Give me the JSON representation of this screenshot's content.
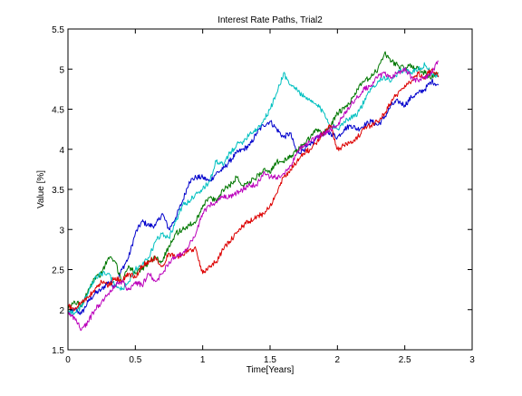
{
  "chart_data": {
    "type": "line",
    "title": "Interest Rate Paths, Trial2",
    "xlabel": "Time[Years]",
    "ylabel": "Value [%]",
    "xlim": [
      0,
      3
    ],
    "ylim": [
      1.5,
      5.5
    ],
    "xticks": [
      0,
      0.5,
      1,
      1.5,
      2,
      2.5,
      3
    ],
    "xtick_labels": [
      "0",
      "0.5",
      "1",
      "1.5",
      "2",
      "2.5",
      "3"
    ],
    "yticks": [
      1.5,
      2,
      2.5,
      3,
      3.5,
      4,
      4.5,
      5,
      5.5
    ],
    "ytick_labels": [
      "1.5",
      "2",
      "2.5",
      "3",
      "3.5",
      "4",
      "4.5",
      "5",
      "5.5"
    ],
    "grid": false,
    "legend": "none",
    "series": [
      {
        "color": "#0000cc",
        "x": [
          0,
          0.05,
          0.1,
          0.15,
          0.2,
          0.25,
          0.3,
          0.35,
          0.4,
          0.45,
          0.5,
          0.55,
          0.6,
          0.65,
          0.7,
          0.75,
          0.8,
          0.85,
          0.9,
          0.95,
          1,
          1.05,
          1.1,
          1.15,
          1.2,
          1.25,
          1.3,
          1.35,
          1.4,
          1.45,
          1.5,
          1.55,
          1.6,
          1.65,
          1.7,
          1.75,
          1.8,
          1.85,
          1.9,
          1.95,
          2,
          2.05,
          2.1,
          2.15,
          2.2,
          2.25,
          2.3,
          2.35,
          2.4,
          2.45,
          2.5,
          2.55,
          2.6,
          2.65,
          2.7,
          2.75
        ],
        "y": [
          1.95,
          2.0,
          1.95,
          2.1,
          2.2,
          2.25,
          2.35,
          2.3,
          2.5,
          2.65,
          2.95,
          3.1,
          3.05,
          3.05,
          3.2,
          3.0,
          3.15,
          3.35,
          3.6,
          3.65,
          3.65,
          3.6,
          3.7,
          3.75,
          3.85,
          3.95,
          4.0,
          4.05,
          4.2,
          4.3,
          4.35,
          4.25,
          4.15,
          4.2,
          3.95,
          4.0,
          4.05,
          4.15,
          4.2,
          4.2,
          4.15,
          4.25,
          4.3,
          4.25,
          4.3,
          4.35,
          4.3,
          4.4,
          4.55,
          4.6,
          4.55,
          4.65,
          4.7,
          4.75,
          4.85,
          4.8
        ]
      },
      {
        "color": "#007700",
        "x": [
          0,
          0.05,
          0.1,
          0.15,
          0.2,
          0.25,
          0.3,
          0.35,
          0.4,
          0.45,
          0.5,
          0.55,
          0.6,
          0.65,
          0.7,
          0.75,
          0.8,
          0.85,
          0.9,
          0.95,
          1,
          1.05,
          1.1,
          1.15,
          1.2,
          1.25,
          1.3,
          1.35,
          1.4,
          1.45,
          1.5,
          1.55,
          1.6,
          1.65,
          1.7,
          1.75,
          1.8,
          1.85,
          1.9,
          1.95,
          2,
          2.05,
          2.1,
          2.15,
          2.2,
          2.25,
          2.3,
          2.35,
          2.4,
          2.45,
          2.5,
          2.55,
          2.6,
          2.65,
          2.7,
          2.75
        ],
        "y": [
          2.0,
          2.1,
          2.05,
          2.25,
          2.4,
          2.45,
          2.65,
          2.6,
          2.35,
          2.55,
          2.45,
          2.5,
          2.6,
          2.65,
          2.6,
          2.8,
          2.95,
          3.0,
          3.05,
          3.1,
          3.3,
          3.4,
          3.35,
          3.5,
          3.55,
          3.65,
          3.55,
          3.6,
          3.65,
          3.75,
          3.7,
          3.85,
          3.85,
          3.9,
          4.0,
          4.05,
          4.15,
          4.25,
          4.2,
          4.3,
          4.45,
          4.5,
          4.6,
          4.75,
          4.85,
          4.9,
          5.0,
          5.2,
          5.1,
          5.05,
          5.0,
          5.05,
          5.0,
          4.95,
          4.9,
          4.95
        ]
      },
      {
        "color": "#00c0c0",
        "x": [
          0,
          0.05,
          0.1,
          0.15,
          0.2,
          0.25,
          0.3,
          0.35,
          0.4,
          0.45,
          0.5,
          0.55,
          0.6,
          0.65,
          0.7,
          0.75,
          0.8,
          0.85,
          0.9,
          0.95,
          1,
          1.05,
          1.1,
          1.15,
          1.2,
          1.25,
          1.3,
          1.35,
          1.4,
          1.45,
          1.5,
          1.55,
          1.6,
          1.65,
          1.7,
          1.75,
          1.8,
          1.85,
          1.9,
          1.95,
          2,
          2.05,
          2.1,
          2.15,
          2.2,
          2.25,
          2.3,
          2.35,
          2.4,
          2.45,
          2.5,
          2.55,
          2.6,
          2.65,
          2.7,
          2.75
        ],
        "y": [
          2.0,
          1.95,
          2.05,
          2.2,
          2.4,
          2.45,
          2.45,
          2.3,
          2.25,
          2.35,
          2.5,
          2.55,
          2.65,
          2.85,
          2.95,
          2.9,
          3.1,
          3.3,
          3.35,
          3.45,
          3.5,
          3.6,
          3.85,
          3.8,
          3.95,
          4.05,
          4.1,
          4.2,
          4.25,
          4.35,
          4.5,
          4.7,
          4.95,
          4.8,
          4.75,
          4.65,
          4.6,
          4.55,
          4.45,
          4.3,
          4.25,
          4.35,
          4.4,
          4.45,
          4.6,
          4.75,
          4.85,
          4.9,
          4.85,
          4.95,
          5.0,
          4.95,
          5.0,
          5.05,
          4.95,
          4.9
        ]
      },
      {
        "color": "#dd0000",
        "x": [
          0,
          0.05,
          0.1,
          0.15,
          0.2,
          0.25,
          0.3,
          0.35,
          0.4,
          0.45,
          0.5,
          0.55,
          0.6,
          0.65,
          0.7,
          0.75,
          0.8,
          0.85,
          0.9,
          0.95,
          1,
          1.05,
          1.1,
          1.15,
          1.2,
          1.25,
          1.3,
          1.35,
          1.4,
          1.45,
          1.5,
          1.55,
          1.6,
          1.65,
          1.7,
          1.75,
          1.8,
          1.85,
          1.9,
          1.95,
          2,
          2.05,
          2.1,
          2.15,
          2.2,
          2.25,
          2.3,
          2.35,
          2.4,
          2.45,
          2.5,
          2.55,
          2.6,
          2.65,
          2.7,
          2.75
        ],
        "y": [
          2.05,
          2.0,
          2.1,
          2.15,
          2.25,
          2.35,
          2.3,
          2.4,
          2.35,
          2.45,
          2.4,
          2.55,
          2.6,
          2.65,
          2.55,
          2.7,
          2.65,
          2.7,
          2.75,
          2.75,
          2.45,
          2.55,
          2.6,
          2.75,
          2.85,
          2.95,
          3.05,
          3.1,
          3.15,
          3.2,
          3.3,
          3.45,
          3.65,
          3.75,
          3.85,
          3.95,
          4.0,
          4.1,
          4.2,
          4.3,
          4.0,
          4.05,
          4.1,
          4.15,
          4.25,
          4.3,
          4.35,
          4.45,
          4.6,
          4.7,
          4.8,
          4.85,
          4.95,
          4.9,
          5.0,
          4.9
        ]
      },
      {
        "color": "#bb00bb",
        "x": [
          0,
          0.05,
          0.1,
          0.15,
          0.2,
          0.25,
          0.3,
          0.35,
          0.4,
          0.45,
          0.5,
          0.55,
          0.6,
          0.65,
          0.7,
          0.75,
          0.8,
          0.85,
          0.9,
          0.95,
          1,
          1.05,
          1.1,
          1.15,
          1.2,
          1.25,
          1.3,
          1.35,
          1.4,
          1.45,
          1.5,
          1.55,
          1.6,
          1.65,
          1.7,
          1.75,
          1.8,
          1.85,
          1.9,
          1.95,
          2,
          2.05,
          2.1,
          2.15,
          2.2,
          2.25,
          2.3,
          2.35,
          2.4,
          2.45,
          2.5,
          2.55,
          2.6,
          2.65,
          2.7,
          2.75
        ],
        "y": [
          1.95,
          1.9,
          1.75,
          1.85,
          2.0,
          2.1,
          2.2,
          2.3,
          2.35,
          2.25,
          2.35,
          2.3,
          2.45,
          2.35,
          2.45,
          2.6,
          2.65,
          2.7,
          2.8,
          2.95,
          3.2,
          3.3,
          3.35,
          3.4,
          3.4,
          3.45,
          3.5,
          3.55,
          3.55,
          3.7,
          3.65,
          3.65,
          3.7,
          3.8,
          3.95,
          4.05,
          4.1,
          4.15,
          4.2,
          4.25,
          4.3,
          4.45,
          4.55,
          4.65,
          4.75,
          4.8,
          4.9,
          4.95,
          4.9,
          4.95,
          5.0,
          4.9,
          4.85,
          4.9,
          4.95,
          5.1
        ]
      }
    ]
  }
}
